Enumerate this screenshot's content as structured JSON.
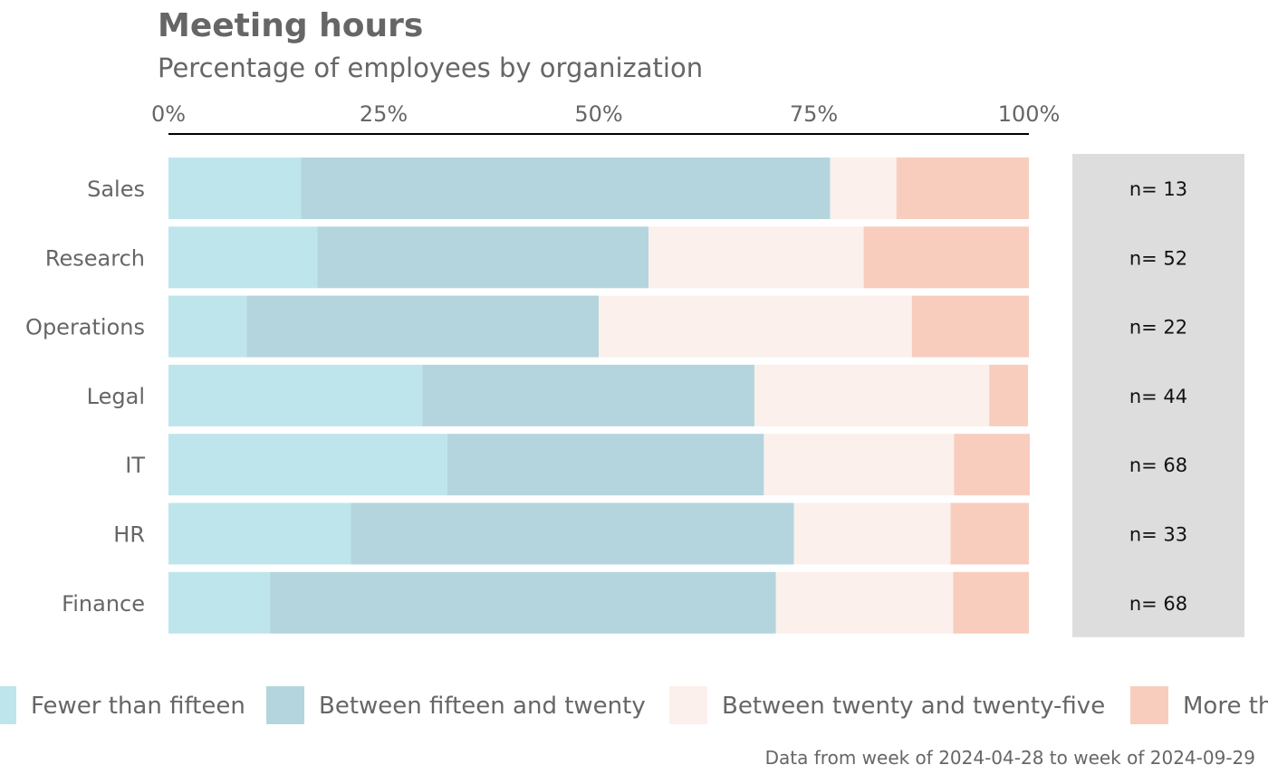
{
  "chart_data": {
    "type": "bar",
    "orientation": "horizontal",
    "stacked": true,
    "title": "Meeting hours",
    "subtitle": "Percentage of employees by organization",
    "caption": "Data from week of 2024-04-28 to week of 2024-09-29",
    "xlim": [
      0,
      100
    ],
    "x_ticks": [
      "0%",
      "25%",
      "50%",
      "75%",
      "100%"
    ],
    "x_tick_values": [
      0,
      25,
      50,
      75,
      100
    ],
    "axis_position": "top",
    "grid": false,
    "legend_position": "bottom",
    "categories": [
      "Sales",
      "Research",
      "Operations",
      "Legal",
      "IT",
      "HR",
      "Finance"
    ],
    "n_labels": [
      "n= 13",
      "n= 52",
      "n= 22",
      "n= 44",
      "n= 68",
      "n= 33",
      "n= 68"
    ],
    "series": [
      {
        "name": "Fewer than fifteen",
        "color": "#bfe5ec",
        "values": [
          15.4,
          17.3,
          9.1,
          29.5,
          32.4,
          21.2,
          11.8
        ]
      },
      {
        "name": "Between fifteen and twenty",
        "color": "#b4d5dd",
        "values": [
          61.5,
          38.5,
          40.9,
          38.6,
          36.8,
          51.5,
          58.8
        ]
      },
      {
        "name": "Between twenty and twenty-five",
        "color": "#fbf0eb",
        "values": [
          7.7,
          25.0,
          36.4,
          27.3,
          22.1,
          18.2,
          20.6
        ]
      },
      {
        "name": "More than twenty-five",
        "color": "#f8cdbd",
        "values": [
          15.4,
          19.2,
          13.6,
          4.5,
          8.8,
          9.1,
          8.8
        ]
      }
    ],
    "n_panel_color": "#dddddd"
  }
}
